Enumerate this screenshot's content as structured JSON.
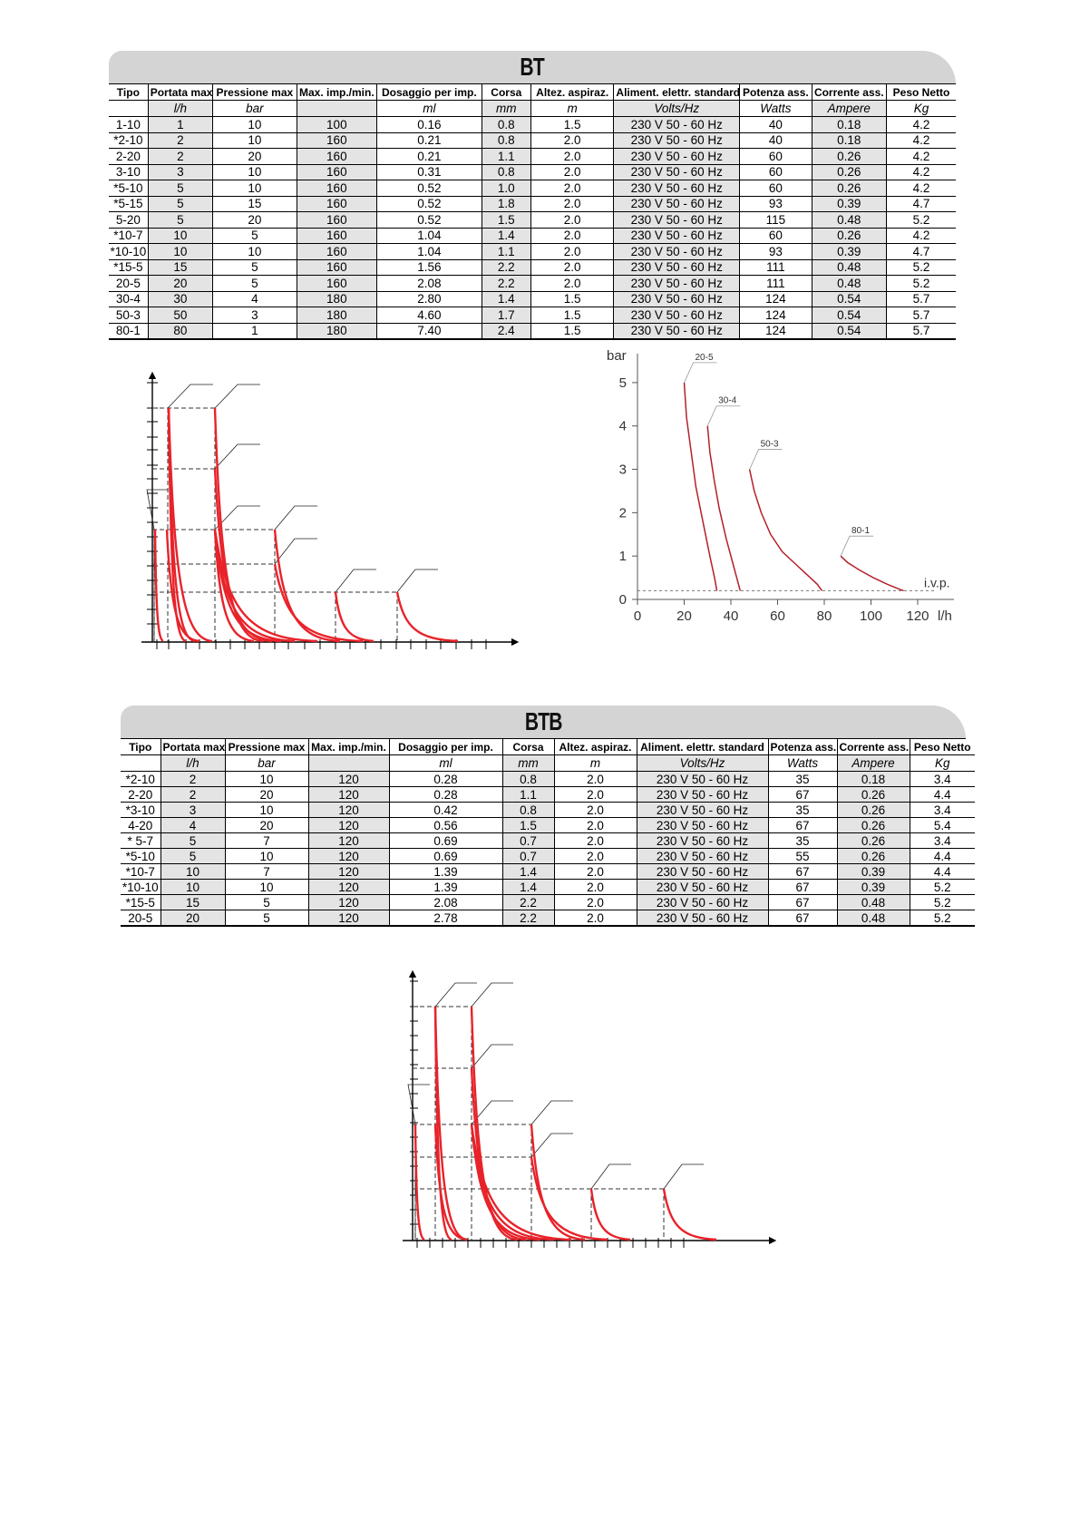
{
  "bt": {
    "title": "BT",
    "headers": [
      "Tipo",
      "Portata max",
      "Pressione max",
      "Max. imp./min.",
      "Dosaggio per imp.",
      "Corsa",
      "Altez. aspiraz.",
      "Aliment. elettr. standard",
      "Potenza ass.",
      "Corrente ass.",
      "Peso Netto"
    ],
    "units": [
      "",
      "l/h",
      "bar",
      "",
      "ml",
      "mm",
      "m",
      "Volts/Hz",
      "Watts",
      "Ampere",
      "Kg"
    ],
    "rows": [
      [
        "1-10",
        "1",
        "10",
        "100",
        "0.16",
        "0.8",
        "1.5",
        "230 V  50 - 60 Hz",
        "40",
        "0.18",
        "4.2"
      ],
      [
        "*2-10",
        "2",
        "10",
        "160",
        "0.21",
        "0.8",
        "2.0",
        "230 V  50 - 60 Hz",
        "40",
        "0.18",
        "4.2"
      ],
      [
        "2-20",
        "2",
        "20",
        "160",
        "0.21",
        "1.1",
        "2.0",
        "230 V  50 - 60 Hz",
        "60",
        "0.26",
        "4.2"
      ],
      [
        "3-10",
        "3",
        "10",
        "160",
        "0.31",
        "0.8",
        "2.0",
        "230 V  50 - 60 Hz",
        "60",
        "0.26",
        "4.2"
      ],
      [
        "*5-10",
        "5",
        "10",
        "160",
        "0.52",
        "1.0",
        "2.0",
        "230 V  50 - 60 Hz",
        "60",
        "0.26",
        "4.2"
      ],
      [
        "*5-15",
        "5",
        "15",
        "160",
        "0.52",
        "1.8",
        "2.0",
        "230 V  50 - 60 Hz",
        "93",
        "0.39",
        "4.7"
      ],
      [
        "5-20",
        "5",
        "20",
        "160",
        "0.52",
        "1.5",
        "2.0",
        "230 V  50 - 60 Hz",
        "115",
        "0.48",
        "5.2"
      ],
      [
        "*10-7",
        "10",
        "5",
        "160",
        "1.04",
        "1.4",
        "2.0",
        "230 V  50 - 60 Hz",
        "60",
        "0.26",
        "4.2"
      ],
      [
        "*10-10",
        "10",
        "10",
        "160",
        "1.04",
        "1.1",
        "2.0",
        "230 V  50 - 60 Hz",
        "93",
        "0.39",
        "4.7"
      ],
      [
        "*15-5",
        "15",
        "5",
        "160",
        "1.56",
        "2.2",
        "2.0",
        "230 V  50 - 60 Hz",
        "111",
        "0.48",
        "5.2"
      ],
      [
        "20-5",
        "20",
        "5",
        "160",
        "2.08",
        "2.2",
        "2.0",
        "230 V  50 - 60 Hz",
        "111",
        "0.48",
        "5.2"
      ],
      [
        "30-4",
        "30",
        "4",
        "180",
        "2.80",
        "1.4",
        "1.5",
        "230 V  50 - 60 Hz",
        "124",
        "0.54",
        "5.7"
      ],
      [
        "50-3",
        "50",
        "3",
        "180",
        "4.60",
        "1.7",
        "1.5",
        "230 V  50 - 60 Hz",
        "124",
        "0.54",
        "5.7"
      ],
      [
        "80-1",
        "80",
        "1",
        "180",
        "7.40",
        "2.4",
        "1.5",
        "230 V  50 - 60 Hz",
        "124",
        "0.54",
        "5.7"
      ]
    ]
  },
  "btb": {
    "title": "BTB",
    "headers": [
      "Tipo",
      "Portata max",
      "Pressione max",
      "Max. imp./min.",
      "Dosaggio per imp.",
      "Corsa",
      "Altez. aspiraz.",
      "Aliment. elettr. standard",
      "Potenza ass.",
      "Corrente ass.",
      "Peso Netto"
    ],
    "units": [
      "",
      "l/h",
      "bar",
      "",
      "ml",
      "mm",
      "m",
      "Volts/Hz",
      "Watts",
      "Ampere",
      "Kg"
    ],
    "rows": [
      [
        "*2-10",
        "2",
        "10",
        "120",
        "0.28",
        "0.8",
        "2.0",
        "230 V  50 - 60 Hz",
        "35",
        "0.18",
        "3.4"
      ],
      [
        "2-20",
        "2",
        "20",
        "120",
        "0.28",
        "1.1",
        "2.0",
        "230 V  50 - 60 Hz",
        "67",
        "0.26",
        "4.4"
      ],
      [
        "*3-10",
        "3",
        "10",
        "120",
        "0.42",
        "0.8",
        "2.0",
        "230 V  50 - 60 Hz",
        "35",
        "0.26",
        "3.4"
      ],
      [
        "4-20",
        "4",
        "20",
        "120",
        "0.56",
        "1.5",
        "2.0",
        "230 V  50 - 60 Hz",
        "67",
        "0.26",
        "5.4"
      ],
      [
        "* 5-7",
        "5",
        "7",
        "120",
        "0.69",
        "0.7",
        "2.0",
        "230 V  50 - 60 Hz",
        "35",
        "0.26",
        "3.4"
      ],
      [
        "*5-10",
        "5",
        "10",
        "120",
        "0.69",
        "0.7",
        "2.0",
        "230 V  50 - 60 Hz",
        "55",
        "0.26",
        "4.4"
      ],
      [
        "*10-7",
        "10",
        "7",
        "120",
        "1.39",
        "1.4",
        "2.0",
        "230 V  50 - 60 Hz",
        "67",
        "0.39",
        "4.4"
      ],
      [
        "*10-10",
        "10",
        "10",
        "120",
        "1.39",
        "1.4",
        "2.0",
        "230 V  50 - 60 Hz",
        "67",
        "0.39",
        "5.2"
      ],
      [
        "*15-5",
        "15",
        "5",
        "120",
        "2.08",
        "2.2",
        "2.0",
        "230 V  50 - 60 Hz",
        "67",
        "0.48",
        "5.2"
      ],
      [
        "20-5",
        "20",
        "5",
        "120",
        "2.78",
        "2.2",
        "2.0",
        "230 V  50 - 60 Hz",
        "67",
        "0.48",
        "5.2"
      ]
    ]
  },
  "chart_data": [
    {
      "type": "line",
      "title": "",
      "xlabel": "l/h",
      "ylabel": "bar",
      "xlim": [
        0,
        120
      ],
      "ylim": [
        0,
        5.5
      ],
      "x_ticks": [
        0,
        20,
        40,
        60,
        80,
        100,
        120
      ],
      "y_ticks": [
        0,
        1,
        2,
        3,
        4,
        5
      ],
      "grid": false,
      "baseline_label": "i.v.p.",
      "baseline_y": 0.2,
      "series": [
        {
          "name": "20-5",
          "x": [
            20,
            21,
            23,
            25,
            28,
            31,
            33,
            34
          ],
          "y": [
            5,
            4.2,
            3.4,
            2.6,
            1.8,
            1.0,
            0.5,
            0.2
          ]
        },
        {
          "name": "30-4",
          "x": [
            30,
            31,
            33,
            35,
            38,
            41,
            43,
            44
          ],
          "y": [
            4,
            3.4,
            2.7,
            2.1,
            1.4,
            0.8,
            0.4,
            0.2
          ]
        },
        {
          "name": "50-3",
          "x": [
            48,
            50,
            53,
            57,
            62,
            68,
            73,
            77,
            79
          ],
          "y": [
            3,
            2.5,
            2.0,
            1.5,
            1.1,
            0.8,
            0.55,
            0.35,
            0.2
          ]
        },
        {
          "name": "80-1",
          "x": [
            87,
            90,
            95,
            101,
            107,
            112,
            114
          ],
          "y": [
            1,
            0.85,
            0.68,
            0.5,
            0.35,
            0.24,
            0.2
          ]
        }
      ]
    }
  ]
}
